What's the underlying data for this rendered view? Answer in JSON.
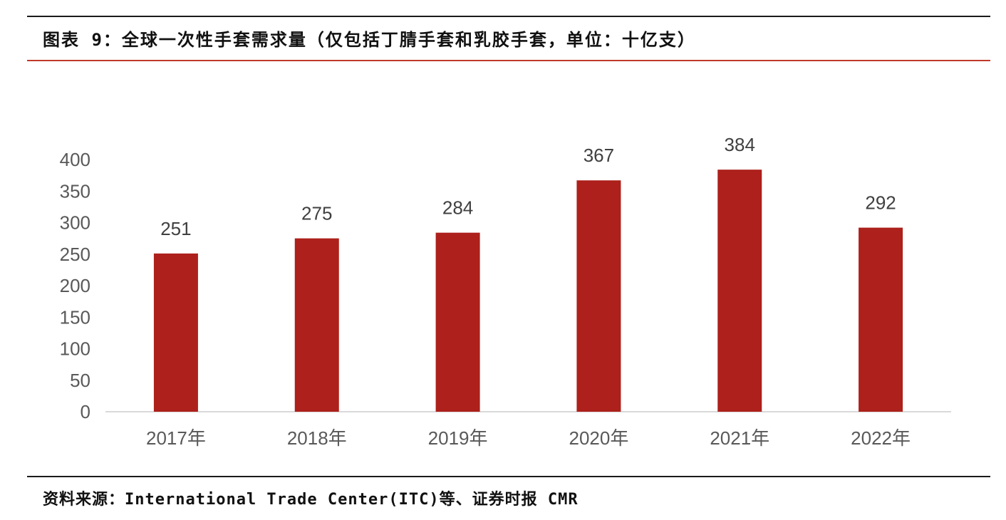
{
  "header": {
    "title": "图表 9：全球一次性手套需求量（仅包括丁腈手套和乳胶手套，单位：十亿支）"
  },
  "footer": {
    "source": "资料来源：International Trade Center(ITC)等、证券时报 CMR"
  },
  "colors": {
    "bar": "#ad201b",
    "axis_text": "#595959",
    "label_text": "#404040"
  },
  "chart_data": {
    "type": "bar",
    "title": "",
    "xlabel": "",
    "ylabel": "",
    "categories": [
      "2017年",
      "2018年",
      "2019年",
      "2020年",
      "2021年",
      "2022年"
    ],
    "values": [
      251,
      275,
      284,
      367,
      384,
      292
    ],
    "yticks": [
      0,
      50,
      100,
      150,
      200,
      250,
      300,
      350,
      400
    ],
    "ylim": [
      0,
      400
    ],
    "grid": false,
    "legend": "none",
    "data_labels": true
  }
}
